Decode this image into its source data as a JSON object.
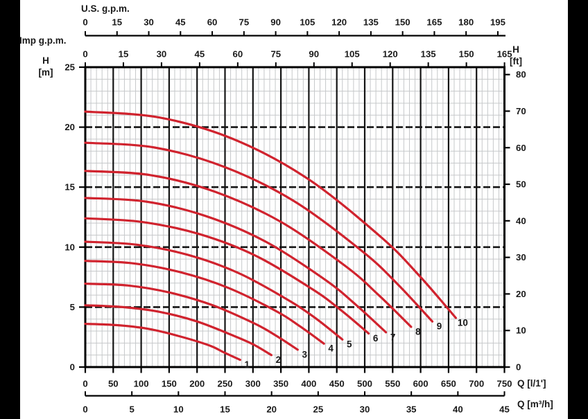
{
  "titles": {
    "us_gpm": "U.S. g.p.m.",
    "imp_gpm": "Imp g.p.m.",
    "h_left_symbol": "H",
    "h_left_unit": "[m]",
    "h_right_symbol": "H",
    "h_right_unit": "[ft]",
    "q_l": "Q [l/1']",
    "q_m3h": "Q [m³/h]"
  },
  "colors": {
    "curve": "#d0232e",
    "grid_minor": "#c6c8ca",
    "grid_major": "#141414",
    "frame": "#000000",
    "text": "#1a1a1a",
    "side_bars": "#000000"
  },
  "chart_data": {
    "type": "line",
    "title": "Pump performance curves H-Q",
    "x_axes": [
      {
        "id": "q_l",
        "label": "Q [l/1']",
        "range": [
          0,
          750
        ],
        "liters_per_unit": 1,
        "ticks": [
          0,
          50,
          100,
          150,
          200,
          250,
          300,
          350,
          400,
          450,
          500,
          550,
          600,
          650,
          700,
          750
        ],
        "position": "bottom"
      },
      {
        "id": "q_m3h",
        "label": "Q [m³/h]",
        "range": [
          0,
          45
        ],
        "liters_per_unit": 16.6667,
        "ticks": [
          0,
          5,
          10,
          15,
          20,
          25,
          30,
          35,
          40,
          45
        ],
        "position": "bottom-outer"
      },
      {
        "id": "us_gpm",
        "label": "U.S. g.p.m.",
        "range": [
          0,
          198
        ],
        "liters_per_unit": 3.78541,
        "ticks": [
          0,
          15,
          30,
          45,
          60,
          75,
          90,
          105,
          120,
          135,
          150,
          165,
          180,
          195
        ],
        "position": "top-outer"
      },
      {
        "id": "imp_gpm",
        "label": "Imp g.p.m.",
        "range": [
          0,
          165
        ],
        "liters_per_unit": 4.54609,
        "ticks": [
          0,
          15,
          30,
          45,
          60,
          75,
          90,
          105,
          120,
          135,
          150,
          165
        ],
        "position": "top"
      }
    ],
    "y_axes": [
      {
        "id": "h_m",
        "label": "H [m]",
        "range": [
          0,
          25
        ],
        "meters_per_unit": 1,
        "ticks": [
          0,
          5,
          10,
          15,
          20,
          25
        ],
        "position": "left"
      },
      {
        "id": "h_ft",
        "label": "H [ft]",
        "range": [
          0,
          82.02
        ],
        "meters_per_unit": 0.3048,
        "ticks": [
          0,
          10,
          20,
          30,
          40,
          50,
          60,
          70,
          80
        ],
        "position": "right"
      }
    ],
    "grid": {
      "vertical_minor_step_l": 10,
      "vertical_major_step_l": 50,
      "horizontal_minor_step_m": 1,
      "horizontal_major_step_m": 5,
      "major_horizontal_style": "dashed"
    },
    "legend": "curve numbers printed at line ends",
    "series": [
      {
        "name": "1",
        "points": [
          [
            0,
            3.6
          ],
          [
            55,
            3.5
          ],
          [
            111,
            3.2
          ],
          [
            166,
            2.6
          ],
          [
            222,
            1.8
          ],
          [
            249,
            1.2
          ],
          [
            277,
            0.6
          ]
        ]
      },
      {
        "name": "2",
        "points": [
          [
            0,
            5.15
          ],
          [
            67,
            5.0
          ],
          [
            133,
            4.6
          ],
          [
            200,
            3.8
          ],
          [
            266,
            2.6
          ],
          [
            300,
            1.9
          ],
          [
            333,
            1.0
          ]
        ]
      },
      {
        "name": "3",
        "points": [
          [
            0,
            6.95
          ],
          [
            76,
            6.8
          ],
          [
            152,
            6.2
          ],
          [
            228,
            5.15
          ],
          [
            304,
            3.6
          ],
          [
            342,
            2.6
          ],
          [
            380,
            1.45
          ]
        ]
      },
      {
        "name": "4",
        "points": [
          [
            0,
            8.85
          ],
          [
            85,
            8.65
          ],
          [
            171,
            7.9
          ],
          [
            256,
            6.6
          ],
          [
            342,
            4.65
          ],
          [
            384,
            3.4
          ],
          [
            427,
            1.95
          ]
        ]
      },
      {
        "name": "5",
        "points": [
          [
            0,
            10.45
          ],
          [
            92,
            10.2
          ],
          [
            184,
            9.35
          ],
          [
            276,
            7.8
          ],
          [
            368,
            5.45
          ],
          [
            414,
            4.0
          ],
          [
            460,
            2.3
          ]
        ]
      },
      {
        "name": "6",
        "points": [
          [
            0,
            12.4
          ],
          [
            101,
            12.1
          ],
          [
            203,
            11.1
          ],
          [
            304,
            9.3
          ],
          [
            406,
            6.5
          ],
          [
            456,
            4.8
          ],
          [
            507,
            2.8
          ]
        ]
      },
      {
        "name": "7",
        "points": [
          [
            0,
            14.1
          ],
          [
            108,
            13.8
          ],
          [
            215,
            12.6
          ],
          [
            323,
            10.45
          ],
          [
            430,
            7.25
          ],
          [
            484,
            5.2
          ],
          [
            538,
            2.9
          ]
        ]
      },
      {
        "name": "8",
        "points": [
          [
            0,
            16.35
          ],
          [
            117,
            16.0
          ],
          [
            233,
            14.6
          ],
          [
            350,
            12.1
          ],
          [
            466,
            8.4
          ],
          [
            525,
            6.0
          ],
          [
            583,
            3.35
          ]
        ]
      },
      {
        "name": "9",
        "points": [
          [
            0,
            18.7
          ],
          [
            124,
            18.3
          ],
          [
            248,
            16.7
          ],
          [
            373,
            13.85
          ],
          [
            497,
            9.6
          ],
          [
            559,
            6.9
          ],
          [
            621,
            3.8
          ]
        ]
      },
      {
        "name": "10",
        "points": [
          [
            0,
            21.3
          ],
          [
            133,
            20.8
          ],
          [
            265,
            19.0
          ],
          [
            398,
            15.7
          ],
          [
            530,
            10.8
          ],
          [
            597,
            7.65
          ],
          [
            663,
            4.1
          ]
        ]
      }
    ]
  }
}
